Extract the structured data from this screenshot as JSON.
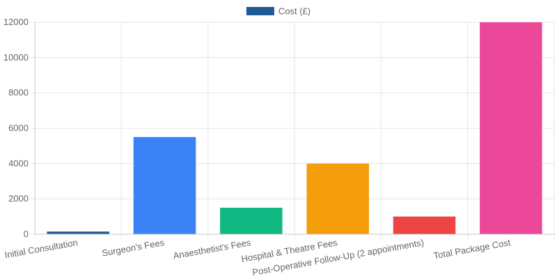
{
  "chart_data": {
    "type": "bar",
    "categories": [
      "Initial Consultation",
      "Surgeon's Fees",
      "Anaesthetist's Fees",
      "Hospital & Theatre Fees",
      "Post-Operative Follow-Up (2 appointments)",
      "Total Package Cost"
    ],
    "series": [
      {
        "name": "Cost (£)",
        "values": [
          150,
          5500,
          1500,
          4000,
          1000,
          12000
        ],
        "colors": [
          "#1f5a96",
          "#3b82f6",
          "#10b981",
          "#f59e0b",
          "#ef4444",
          "#ec4899"
        ]
      }
    ],
    "legend": {
      "label": "Cost (£)",
      "color": "#1f5a96",
      "position": "top-center"
    },
    "ylim": [
      0,
      12000
    ],
    "yticks": [
      "0",
      "2000",
      "4000",
      "6000",
      "8000",
      "10000",
      "12000"
    ],
    "grid": true,
    "colors": {
      "grid": "#e5e5e5",
      "axis": "#c8c8c8",
      "text": "#666666"
    }
  }
}
